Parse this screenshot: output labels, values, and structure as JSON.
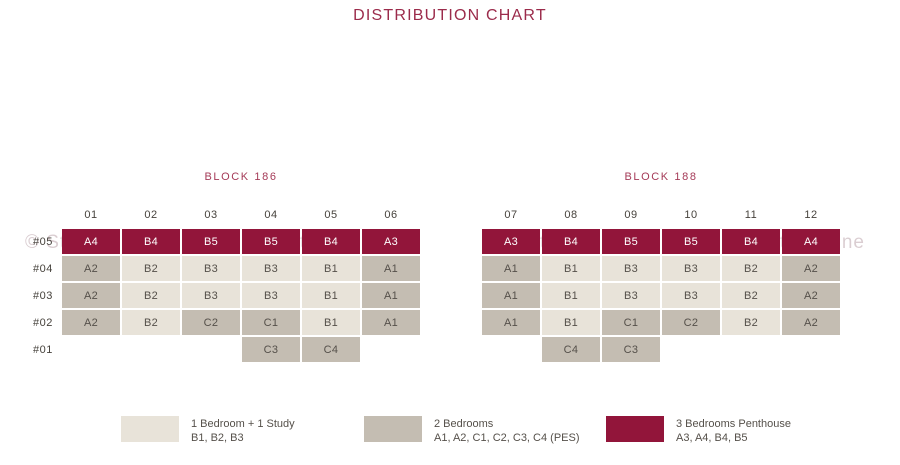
{
  "title": "DISTRIBUTION CHART",
  "watermark": "© StreetSine",
  "colors": {
    "heading": "#9B2B4B",
    "blocklabel": "#A53B58",
    "pent": "#92153A",
    "two": "#C4BDB2",
    "study": "#E8E3D9",
    "celltext": "#55504A",
    "axis": "#46423C",
    "wm": "#4B0D20"
  },
  "chart_data": {
    "type": "table",
    "title": "DISTRIBUTION CHART",
    "blocks": [
      {
        "name": "BLOCK 186",
        "columns": [
          "01",
          "02",
          "03",
          "04",
          "05",
          "06"
        ],
        "floors": [
          "#05",
          "#04",
          "#03",
          "#02",
          "#01"
        ],
        "rows": [
          [
            {
              "unit": "A4",
              "type": "pent"
            },
            {
              "unit": "B4",
              "type": "pent"
            },
            {
              "unit": "B5",
              "type": "pent"
            },
            {
              "unit": "B5",
              "type": "pent"
            },
            {
              "unit": "B4",
              "type": "pent"
            },
            {
              "unit": "A3",
              "type": "pent"
            }
          ],
          [
            {
              "unit": "A2",
              "type": "two"
            },
            {
              "unit": "B2",
              "type": "study"
            },
            {
              "unit": "B3",
              "type": "study"
            },
            {
              "unit": "B3",
              "type": "study"
            },
            {
              "unit": "B1",
              "type": "study"
            },
            {
              "unit": "A1",
              "type": "two"
            }
          ],
          [
            {
              "unit": "A2",
              "type": "two"
            },
            {
              "unit": "B2",
              "type": "study"
            },
            {
              "unit": "B3",
              "type": "study"
            },
            {
              "unit": "B3",
              "type": "study"
            },
            {
              "unit": "B1",
              "type": "study"
            },
            {
              "unit": "A1",
              "type": "two"
            }
          ],
          [
            {
              "unit": "A2",
              "type": "two"
            },
            {
              "unit": "B2",
              "type": "study"
            },
            {
              "unit": "C2",
              "type": "two"
            },
            {
              "unit": "C1",
              "type": "two"
            },
            {
              "unit": "B1",
              "type": "study"
            },
            {
              "unit": "A1",
              "type": "two"
            }
          ],
          [
            null,
            null,
            null,
            {
              "unit": "C3",
              "type": "two"
            },
            {
              "unit": "C4",
              "type": "two"
            },
            null
          ]
        ]
      },
      {
        "name": "BLOCK 188",
        "columns": [
          "07",
          "08",
          "09",
          "10",
          "11",
          "12"
        ],
        "floors": [
          "#05",
          "#04",
          "#03",
          "#02",
          "#01"
        ],
        "rows": [
          [
            {
              "unit": "A3",
              "type": "pent"
            },
            {
              "unit": "B4",
              "type": "pent"
            },
            {
              "unit": "B5",
              "type": "pent"
            },
            {
              "unit": "B5",
              "type": "pent"
            },
            {
              "unit": "B4",
              "type": "pent"
            },
            {
              "unit": "A4",
              "type": "pent"
            }
          ],
          [
            {
              "unit": "A1",
              "type": "two"
            },
            {
              "unit": "B1",
              "type": "study"
            },
            {
              "unit": "B3",
              "type": "study"
            },
            {
              "unit": "B3",
              "type": "study"
            },
            {
              "unit": "B2",
              "type": "study"
            },
            {
              "unit": "A2",
              "type": "two"
            }
          ],
          [
            {
              "unit": "A1",
              "type": "two"
            },
            {
              "unit": "B1",
              "type": "study"
            },
            {
              "unit": "B3",
              "type": "study"
            },
            {
              "unit": "B3",
              "type": "study"
            },
            {
              "unit": "B2",
              "type": "study"
            },
            {
              "unit": "A2",
              "type": "two"
            }
          ],
          [
            {
              "unit": "A1",
              "type": "two"
            },
            {
              "unit": "B1",
              "type": "study"
            },
            {
              "unit": "C1",
              "type": "two"
            },
            {
              "unit": "C2",
              "type": "two"
            },
            {
              "unit": "B2",
              "type": "study"
            },
            {
              "unit": "A2",
              "type": "two"
            }
          ],
          [
            null,
            {
              "unit": "C4",
              "type": "two"
            },
            {
              "unit": "C3",
              "type": "two"
            },
            null,
            null,
            null
          ]
        ]
      }
    ],
    "legend": [
      {
        "title": "1 Bedroom + 1 Study",
        "units": "B1, B2, B3",
        "type": "study"
      },
      {
        "title": "2 Bedrooms",
        "units": "A1, A2, C1, C2, C3, C4 (PES)",
        "type": "two"
      },
      {
        "title": "3 Bedrooms Penthouse",
        "units": "A3, A4, B4, B5",
        "type": "pent"
      }
    ]
  }
}
